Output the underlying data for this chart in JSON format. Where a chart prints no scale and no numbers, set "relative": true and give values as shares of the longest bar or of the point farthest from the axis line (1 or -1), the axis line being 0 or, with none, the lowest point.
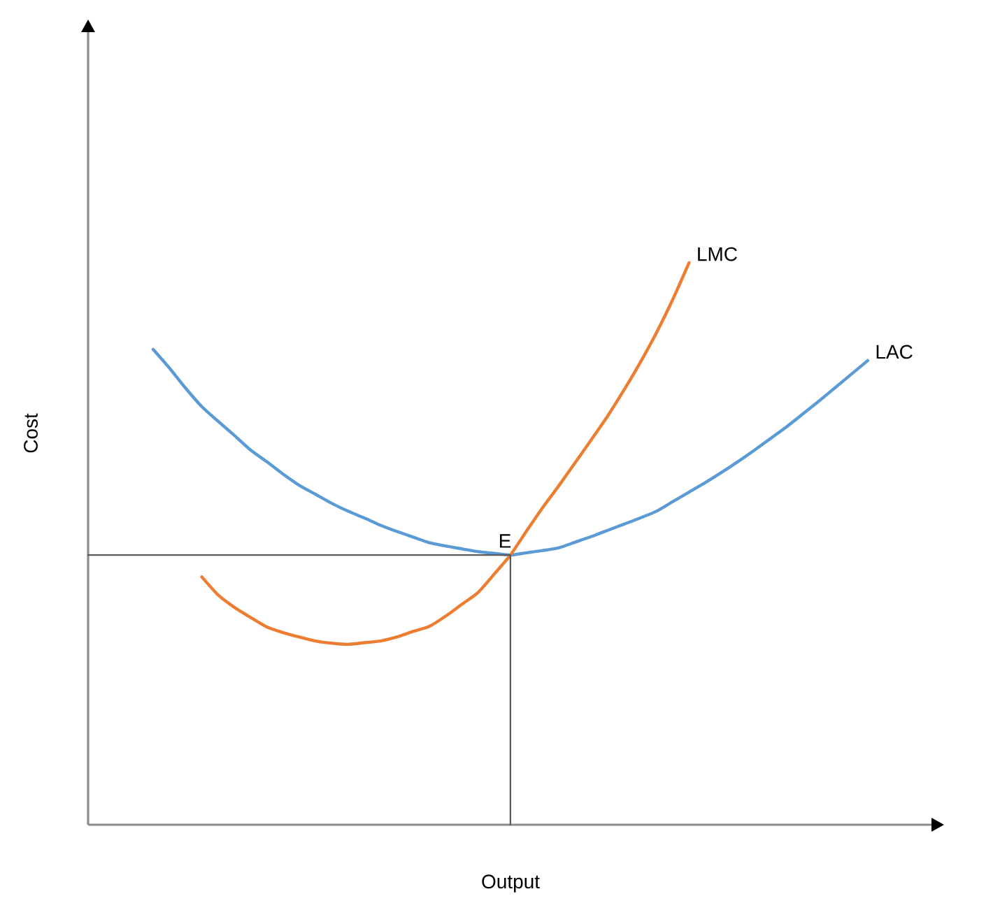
{
  "chart_data": {
    "type": "line",
    "xlabel": "Output",
    "ylabel": "Cost",
    "relative": true,
    "categories": [
      null,
      null,
      null,
      null,
      null,
      null,
      null,
      null,
      null,
      null,
      null,
      null,
      null,
      null,
      null,
      null,
      null,
      null,
      null,
      null,
      null,
      null,
      null,
      null,
      null,
      null,
      null,
      null,
      null,
      null,
      null,
      null,
      null,
      null,
      null,
      null,
      null,
      null,
      null,
      null,
      null,
      null,
      null,
      null,
      null,
      null,
      null,
      null,
      null,
      null,
      null,
      null,
      null
    ],
    "series": [
      {
        "name": "LAC",
        "color": "#5b9bd5",
        "values": [
          null,
          null,
          null,
          null,
          0.846,
          0.813,
          0.777,
          0.744,
          0.718,
          0.693,
          0.667,
          0.646,
          0.624,
          0.604,
          0.588,
          0.572,
          0.558,
          0.546,
          0.533,
          0.522,
          0.512,
          0.502,
          0.496,
          0.491,
          0.486,
          0.483,
          0.48,
          0.484,
          0.488,
          0.493,
          0.503,
          0.513,
          0.524,
          0.535,
          0.546,
          0.558,
          0.575,
          0.592,
          0.609,
          0.627,
          0.646,
          0.666,
          0.687,
          0.708,
          0.731,
          0.754,
          0.778,
          0.802,
          0.826,
          null,
          null,
          null,
          null
        ]
      },
      {
        "name": "LMC",
        "color": "#ed7d31",
        "values": [
          null,
          null,
          null,
          null,
          null,
          null,
          null,
          0.441,
          0.409,
          0.387,
          0.369,
          0.352,
          0.342,
          0.334,
          0.327,
          0.323,
          0.321,
          0.324,
          0.327,
          0.334,
          0.344,
          0.353,
          0.371,
          0.392,
          0.413,
          0.446,
          0.48,
          0.523,
          0.565,
          0.604,
          0.645,
          0.686,
          0.728,
          0.774,
          0.823,
          0.876,
          0.935,
          1,
          null,
          null,
          null,
          null,
          null,
          null,
          null,
          null,
          null,
          null,
          null,
          null,
          null,
          null,
          null
        ]
      },
      {
        "type": "step",
        "color": "#595959",
        "values": [
          0.48,
          0.48,
          0.48,
          0.48,
          0.48,
          0.48,
          0.48,
          0.48,
          0.48,
          0.48,
          0.48,
          0.48,
          0.48,
          0.48,
          0.48,
          0.48,
          0.48,
          0.48,
          0.48,
          0.48,
          0.48,
          0.48,
          0.48,
          0.48,
          0.48,
          0.48,
          0,
          null,
          null,
          null,
          null,
          null,
          null,
          null,
          null,
          null,
          null,
          null,
          null,
          null,
          null,
          null,
          null,
          null,
          null,
          null,
          null,
          null,
          null,
          null,
          null,
          null,
          null
        ]
      }
    ],
    "annotations": [
      {
        "text": "E",
        "y": 0.48
      }
    ]
  }
}
